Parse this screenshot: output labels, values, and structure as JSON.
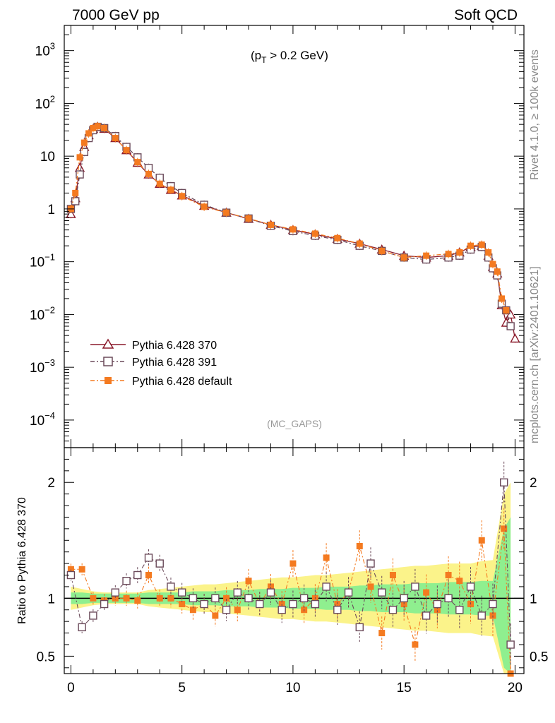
{
  "header": {
    "left": "7000 GeV pp",
    "right": "Soft QCD"
  },
  "side": {
    "top": "Rivet 4.1.0, ≥ 100k events",
    "bottom": "mcplots.cern.ch [arXiv:2401.10621]"
  },
  "chart_data": {
    "type": "line",
    "subtitle": {
      "prefix": "(p",
      "sub": "T",
      "suffix": " > 0.2 GeV)"
    },
    "watermark": "(MC_GAPS)",
    "x_ticks": [
      "0",
      "5",
      "10",
      "15",
      "20"
    ],
    "xlim": [
      -0.3,
      20.4
    ],
    "main_yscale": "log",
    "main_ylim": [
      3e-05,
      3000
    ],
    "main_y_ticks": [
      {
        "value": 1000,
        "base": "10",
        "exp": "3"
      },
      {
        "value": 100,
        "base": "10",
        "exp": "2"
      },
      {
        "value": 10,
        "base": "10",
        "exp": ""
      },
      {
        "value": 1,
        "base": "1",
        "exp": ""
      },
      {
        "value": 0.1,
        "base": "10",
        "exp": "−1"
      },
      {
        "value": 0.01,
        "base": "10",
        "exp": "−2"
      },
      {
        "value": 0.001,
        "base": "10",
        "exp": "−3"
      },
      {
        "value": 0.0001,
        "base": "10",
        "exp": "−4"
      }
    ],
    "ratio_ylabel": "Ratio to Pythia 6.428 370",
    "ratio_ylim": [
      0.35,
      2.3
    ],
    "ratio_y_ticks": [
      "0.5",
      "1",
      "2"
    ],
    "legend_position": "bottom-left",
    "series": [
      {
        "name": "Pythia 6.428 370",
        "color": "#8b1a2b",
        "marker": "open-triangle",
        "line": "solid",
        "x": [
          0,
          0.2,
          0.4,
          0.6,
          0.8,
          1.0,
          1.2,
          1.5,
          2.0,
          2.5,
          3.0,
          3.5,
          4.0,
          4.5,
          5.0,
          6.0,
          7.0,
          8.0,
          9.0,
          10.0,
          11.0,
          12.0,
          13.0,
          14.0,
          15.0,
          16.0,
          17.0,
          17.5,
          18.0,
          18.5,
          18.8,
          19.0,
          19.2,
          19.4,
          19.6,
          19.8,
          20.0
        ],
        "values": [
          0.8,
          1.6,
          6,
          15,
          25,
          33,
          36,
          33,
          22,
          13,
          7.5,
          4.5,
          3.0,
          2.3,
          1.8,
          1.15,
          0.85,
          0.65,
          0.5,
          0.4,
          0.33,
          0.27,
          0.22,
          0.17,
          0.13,
          0.12,
          0.13,
          0.15,
          0.19,
          0.2,
          0.13,
          0.08,
          0.06,
          0.015,
          0.007,
          0.01,
          0.0035
        ]
      },
      {
        "name": "Pythia 6.428 391",
        "color": "#6b4a5a",
        "marker": "open-square",
        "line": "dash-dot",
        "x": [
          0,
          0.2,
          0.4,
          0.6,
          0.8,
          1.0,
          1.2,
          1.5,
          2.0,
          2.5,
          3.0,
          3.5,
          4.0,
          4.5,
          5.0,
          6.0,
          7.0,
          8.0,
          9.0,
          10.0,
          11.0,
          12.0,
          13.0,
          14.0,
          15.0,
          16.0,
          17.0,
          17.5,
          18.0,
          18.5,
          18.8,
          19.0,
          19.2,
          19.4,
          19.6,
          19.8
        ],
        "values": [
          1.0,
          1.4,
          4.5,
          12,
          22,
          31,
          36,
          34,
          24,
          15,
          9.5,
          6.0,
          3.9,
          2.7,
          2.0,
          1.2,
          0.85,
          0.66,
          0.48,
          0.38,
          0.31,
          0.26,
          0.2,
          0.16,
          0.12,
          0.11,
          0.12,
          0.13,
          0.17,
          0.19,
          0.12,
          0.075,
          0.055,
          0.016,
          0.012,
          0.006
        ]
      },
      {
        "name": "Pythia 6.428 default",
        "color": "#f47a20",
        "marker": "filled-square",
        "line": "dash-dot",
        "x": [
          0,
          0.2,
          0.4,
          0.6,
          0.8,
          1.0,
          1.2,
          1.5,
          2.0,
          2.5,
          3.0,
          3.5,
          4.0,
          4.5,
          5.0,
          6.0,
          7.0,
          8.0,
          9.0,
          10.0,
          11.0,
          12.0,
          13.0,
          14.0,
          15.0,
          16.0,
          17.0,
          17.5,
          18.0,
          18.5,
          18.8,
          19.0,
          19.2,
          19.4,
          19.6
        ],
        "values": [
          1.0,
          2.0,
          9.5,
          18,
          27,
          34,
          37,
          34,
          22,
          13,
          7.7,
          4.6,
          3.0,
          2.3,
          1.75,
          1.1,
          0.85,
          0.66,
          0.5,
          0.41,
          0.34,
          0.28,
          0.22,
          0.16,
          0.12,
          0.13,
          0.14,
          0.15,
          0.2,
          0.21,
          0.15,
          0.09,
          0.065,
          0.02,
          0.012
        ]
      }
    ],
    "ratio": {
      "x": [
        0,
        0.5,
        1,
        1.5,
        2,
        2.5,
        3,
        3.5,
        4,
        4.5,
        5,
        5.5,
        6,
        6.5,
        7,
        7.5,
        8,
        8.5,
        9,
        9.5,
        10,
        10.5,
        11,
        11.5,
        12,
        12.5,
        13,
        13.5,
        14,
        14.5,
        15,
        15.5,
        16,
        16.5,
        17,
        17.5,
        18,
        18.5,
        19,
        19.5,
        19.8
      ],
      "series_391": [
        1.2,
        0.75,
        0.85,
        0.95,
        1.05,
        1.15,
        1.2,
        1.35,
        1.3,
        1.1,
        1.05,
        1.0,
        0.95,
        1.0,
        0.9,
        1.05,
        1.0,
        0.95,
        1.05,
        0.9,
        0.95,
        1.0,
        0.95,
        1.1,
        0.9,
        1.05,
        0.75,
        1.3,
        1.05,
        0.9,
        1.0,
        1.1,
        0.85,
        0.95,
        1.0,
        0.9,
        1.1,
        0.85,
        0.95,
        2.0,
        0.6
      ],
      "series_default": [
        1.25,
        1.25,
        1.0,
        0.98,
        1.0,
        1.0,
        0.98,
        1.2,
        1.0,
        1.0,
        0.95,
        0.9,
        0.95,
        0.85,
        1.0,
        0.9,
        1.15,
        0.95,
        1.1,
        0.95,
        1.3,
        0.9,
        1.0,
        1.35,
        0.95,
        1.05,
        1.45,
        1.1,
        0.7,
        1.2,
        0.95,
        0.6,
        1.05,
        0.9,
        1.2,
        1.15,
        0.95,
        1.5,
        0.85,
        1.6,
        0.35
      ],
      "band_green_halfwidth": [
        0.05,
        0.05,
        0.04,
        0.04,
        0.04,
        0.04,
        0.04,
        0.05,
        0.05,
        0.05,
        0.05,
        0.06,
        0.06,
        0.06,
        0.07,
        0.07,
        0.07,
        0.08,
        0.08,
        0.08,
        0.09,
        0.09,
        0.09,
        0.1,
        0.1,
        0.1,
        0.11,
        0.11,
        0.12,
        0.12,
        0.12,
        0.13,
        0.13,
        0.13,
        0.14,
        0.14,
        0.14,
        0.15,
        0.15,
        0.6,
        0.7
      ],
      "band_yellow_halfwidth": [
        0.1,
        0.08,
        0.06,
        0.05,
        0.05,
        0.05,
        0.05,
        0.07,
        0.08,
        0.09,
        0.1,
        0.11,
        0.12,
        0.12,
        0.13,
        0.14,
        0.15,
        0.16,
        0.17,
        0.18,
        0.18,
        0.19,
        0.2,
        0.2,
        0.21,
        0.22,
        0.23,
        0.24,
        0.25,
        0.26,
        0.27,
        0.28,
        0.28,
        0.29,
        0.3,
        0.3,
        0.3,
        0.32,
        0.33,
        0.9,
        1.0
      ]
    }
  }
}
